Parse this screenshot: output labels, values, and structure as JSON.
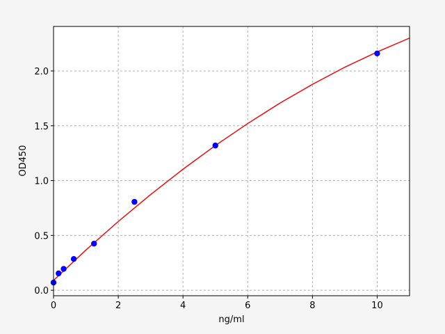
{
  "chart_data": {
    "type": "scatter",
    "title": "",
    "xlabel": "ng/ml",
    "ylabel": "OD450",
    "xlim": [
      0,
      11
    ],
    "ylim": [
      -0.05,
      2.406
    ],
    "xticks": [
      0,
      2,
      4,
      6,
      8,
      10
    ],
    "xtick_labels": [
      "0",
      "2",
      "4",
      "6",
      "8",
      "10"
    ],
    "yticks": [
      0.0,
      0.5,
      1.0,
      1.5,
      2.0
    ],
    "ytick_labels": [
      "0.0",
      "0.5",
      "1.0",
      "1.5",
      "2.0"
    ],
    "grid": true,
    "points": {
      "x": [
        0,
        0.156,
        0.3125,
        0.625,
        1.25,
        2.5,
        5,
        10
      ],
      "y": [
        0.07,
        0.154,
        0.195,
        0.285,
        0.425,
        0.806,
        1.32,
        2.16
      ],
      "color": "#0000ff"
    },
    "fit_curve": {
      "x": [
        0,
        1,
        2,
        3,
        4,
        5,
        6,
        7,
        8,
        9,
        10,
        11
      ],
      "y": [
        0.09,
        0.366,
        0.627,
        0.873,
        1.104,
        1.32,
        1.521,
        1.707,
        1.878,
        2.034,
        2.174,
        2.3
      ],
      "color": "#e31a1c"
    }
  }
}
